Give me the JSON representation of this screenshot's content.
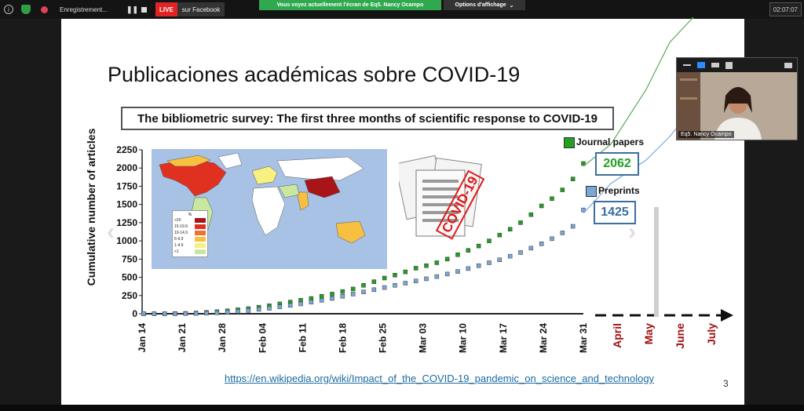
{
  "topbar": {
    "recording_label": "Enregistrement...",
    "live_badge": "LIVE",
    "live_target": "sur Facebook",
    "share_banner": "Vous voyez actuellement l'écran de Eq5. Nancy Ocampo",
    "view_options": "Options d'affichage",
    "elapsed_time": "02:07:07"
  },
  "slide": {
    "title": "Publicaciones académicas sobre COVID-19",
    "subtitle": "The bibliometric survey: The first three months of scientific response to COVID-19",
    "link": "https://en.wikipedia.org/wiki/Impact_of_the_COVID-19_pandemic_on_science_and_technology",
    "page_number": "3",
    "doc_stamp": "COVID-19",
    "map_legend": {
      "title": "%",
      "items": [
        {
          "label": ">20",
          "color": "#a81418"
        },
        {
          "label": "15-19.9",
          "color": "#e03020"
        },
        {
          "label": "10-14.9",
          "color": "#f07030"
        },
        {
          "label": "5-9.9",
          "color": "#f8c040"
        },
        {
          "label": "1-4.9",
          "color": "#f8f080"
        },
        {
          "label": "<1",
          "color": "#c8e8a0"
        }
      ]
    }
  },
  "chart_data": {
    "type": "line",
    "ylabel": "Cumulative number of articles",
    "ylim": [
      0,
      2250
    ],
    "yticks": [
      "0",
      "250",
      "500",
      "750",
      "1000",
      "1250",
      "1500",
      "1750",
      "2000",
      "2250"
    ],
    "xticks": [
      "Jan 14",
      "Jan 21",
      "Jan 28",
      "Feb 04",
      "Feb 11",
      "Feb 18",
      "Feb 25",
      "Mar 03",
      "Mar 10",
      "Mar 17",
      "Mar 24",
      "Mar 31"
    ],
    "future_labels": [
      "April",
      "May",
      "June",
      "July"
    ],
    "series": [
      {
        "name": "Journal papers",
        "color": "#22a022",
        "end_label": "2062",
        "values": [
          0,
          0,
          0,
          2,
          5,
          10,
          18,
          28,
          40,
          55,
          70,
          90,
          110,
          135,
          160,
          185,
          210,
          240,
          270,
          305,
          340,
          390,
          440,
          490,
          530,
          575,
          625,
          660,
          700,
          750,
          810,
          870,
          930,
          1000,
          1080,
          1160,
          1250,
          1360,
          1480,
          1580,
          1700,
          1850,
          2062
        ]
      },
      {
        "name": "Preprints",
        "color": "#7ba7d8",
        "end_label": "1425",
        "values": [
          0,
          0,
          0,
          0,
          2,
          4,
          8,
          14,
          22,
          32,
          45,
          60,
          75,
          95,
          115,
          135,
          160,
          185,
          210,
          240,
          270,
          300,
          330,
          360,
          390,
          420,
          450,
          480,
          510,
          545,
          580,
          620,
          660,
          700,
          740,
          790,
          840,
          900,
          960,
          1030,
          1110,
          1200,
          1425
        ]
      }
    ]
  },
  "selfview": {
    "name": "Eq5. Nancy Ocampo"
  }
}
